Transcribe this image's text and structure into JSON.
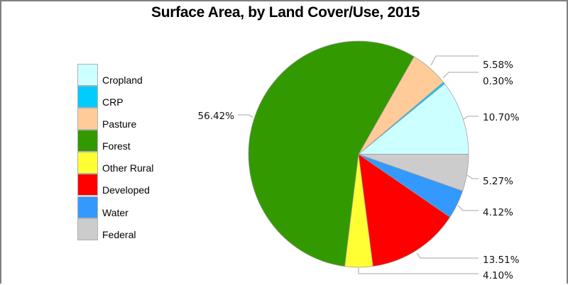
{
  "chart_data": {
    "type": "pie",
    "title": "Surface Area, by Land Cover/Use, 2015",
    "categories": [
      "Cropland",
      "CRP",
      "Pasture",
      "Forest",
      "Other Rural",
      "Developed",
      "Water",
      "Federal"
    ],
    "values": [
      10.7,
      0.3,
      5.58,
      56.42,
      4.1,
      13.51,
      4.12,
      5.27
    ],
    "value_labels": [
      "10.70%",
      "0.30%",
      "5.58%",
      "56.42%",
      "4.10%",
      "13.51%",
      "4.12%",
      "5.27%"
    ],
    "colors": [
      "#ccffff",
      "#00ccff",
      "#ffcc99",
      "#339900",
      "#ffff33",
      "#ff0000",
      "#3399ff",
      "#cccccc"
    ],
    "start_angle_deg": 0,
    "direction": "counterclockwise",
    "legend_position": "left"
  },
  "title": "Surface Area, by Land Cover/Use, 2015",
  "legend": {
    "items": [
      {
        "label": "Cropland",
        "color": "#ccffff"
      },
      {
        "label": "CRP",
        "color": "#00ccff"
      },
      {
        "label": "Pasture",
        "color": "#ffcc99"
      },
      {
        "label": "Forest",
        "color": "#339900"
      },
      {
        "label": "Other Rural",
        "color": "#ffff33"
      },
      {
        "label": "Developed",
        "color": "#ff0000"
      },
      {
        "label": "Water",
        "color": "#3399ff"
      },
      {
        "label": "Federal",
        "color": "#cccccc"
      }
    ]
  },
  "labels": {
    "cropland": "10.70%",
    "crp": "0.30%",
    "pasture": "5.58%",
    "forest": "56.42%",
    "other_rural": "4.10%",
    "developed": "13.51%",
    "water": "4.12%",
    "federal": "5.27%"
  }
}
